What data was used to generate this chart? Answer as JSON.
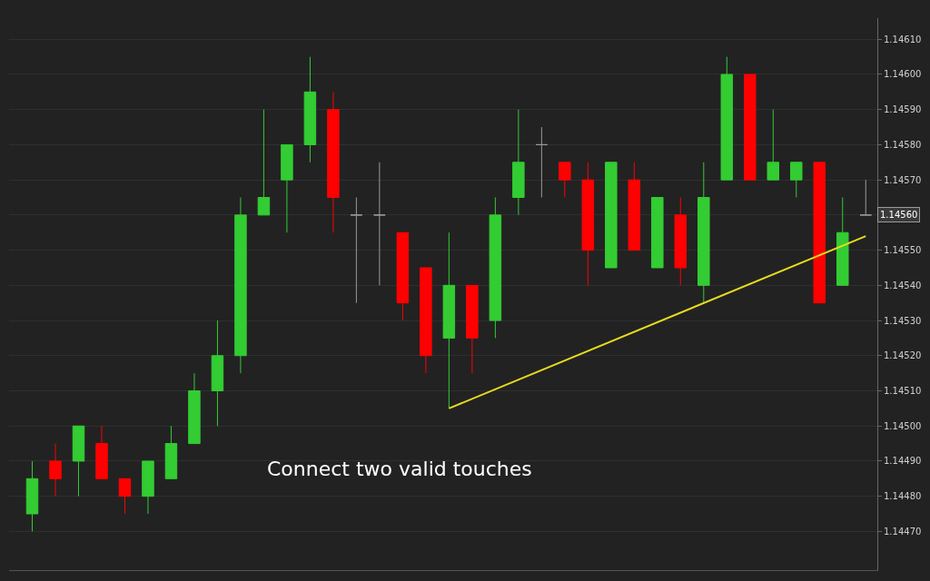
{
  "chart_data": {
    "type": "candlestick",
    "categories": [
      null,
      null,
      null,
      null,
      null,
      null,
      null,
      null,
      null,
      null,
      null,
      null,
      null,
      null,
      null,
      null,
      null,
      null,
      null,
      null,
      null,
      null,
      null,
      null,
      null,
      null,
      null,
      null,
      null,
      null,
      null,
      null,
      null,
      null,
      null,
      null,
      null
    ],
    "ohlc": [
      [
        1.14475,
        1.1449,
        1.1447,
        1.14485
      ],
      [
        1.1449,
        1.14495,
        1.1448,
        1.14485
      ],
      [
        1.1449,
        1.145,
        1.1448,
        1.145
      ],
      [
        1.14495,
        1.145,
        1.14485,
        1.14485
      ],
      [
        1.14485,
        1.14485,
        1.14475,
        1.1448
      ],
      [
        1.1448,
        1.1449,
        1.14475,
        1.1449
      ],
      [
        1.14485,
        1.145,
        1.14485,
        1.14495
      ],
      [
        1.14495,
        1.14515,
        1.14495,
        1.1451
      ],
      [
        1.1451,
        1.1453,
        1.145,
        1.1452
      ],
      [
        1.1452,
        1.14565,
        1.14515,
        1.1456
      ],
      [
        1.1456,
        1.1459,
        1.1456,
        1.14565
      ],
      [
        1.1457,
        1.1458,
        1.14555,
        1.1458
      ],
      [
        1.1458,
        1.14605,
        1.14575,
        1.14595
      ],
      [
        1.1459,
        1.14595,
        1.14555,
        1.14565
      ],
      [
        1.1456,
        1.14565,
        1.14535,
        1.1456
      ],
      [
        1.1456,
        1.14575,
        1.1454,
        1.1456
      ],
      [
        1.14555,
        1.14555,
        1.1453,
        1.14535
      ],
      [
        1.14545,
        1.14545,
        1.14515,
        1.1452
      ],
      [
        1.14525,
        1.14555,
        1.14505,
        1.1454
      ],
      [
        1.1454,
        1.1454,
        1.14515,
        1.14525
      ],
      [
        1.1453,
        1.14565,
        1.14525,
        1.1456
      ],
      [
        1.14565,
        1.1459,
        1.1456,
        1.14575
      ],
      [
        1.1458,
        1.14585,
        1.14565,
        1.1458
      ],
      [
        1.14575,
        1.14575,
        1.14565,
        1.1457
      ],
      [
        1.1457,
        1.14575,
        1.1454,
        1.1455
      ],
      [
        1.14545,
        1.14575,
        1.14545,
        1.14575
      ],
      [
        1.1457,
        1.14575,
        1.1455,
        1.1455
      ],
      [
        1.14545,
        1.14565,
        1.14545,
        1.14565
      ],
      [
        1.1456,
        1.14565,
        1.1454,
        1.14545
      ],
      [
        1.1454,
        1.14575,
        1.14535,
        1.14565
      ],
      [
        1.1457,
        1.14605,
        1.1457,
        1.146
      ],
      [
        1.146,
        1.146,
        1.1457,
        1.1457
      ],
      [
        1.1457,
        1.1459,
        1.1457,
        1.14575
      ],
      [
        1.1457,
        1.14575,
        1.14565,
        1.14575
      ],
      [
        1.14575,
        1.14575,
        1.14535,
        1.14535
      ],
      [
        1.1454,
        1.14565,
        1.1454,
        1.14555
      ],
      [
        1.1456,
        1.1457,
        1.1456,
        1.1456
      ]
    ],
    "colors": [
      "#33cc33",
      "#ff0000",
      "#33cc33",
      "#ff0000",
      "#ff0000",
      "#33cc33",
      "#33cc33",
      "#33cc33",
      "#33cc33",
      "#33cc33",
      "#33cc33",
      "#33cc33",
      "#33cc33",
      "#ff0000",
      "#9a9a9a",
      "#9a9a9a",
      "#ff0000",
      "#ff0000",
      "#33cc33",
      "#ff0000",
      "#33cc33",
      "#33cc33",
      "#9a9a9a",
      "#ff0000",
      "#ff0000",
      "#33cc33",
      "#ff0000",
      "#33cc33",
      "#ff0000",
      "#33cc33",
      "#33cc33",
      "#ff0000",
      "#33cc33",
      "#33cc33",
      "#ff0000",
      "#33cc33",
      "#9a9a9a"
    ],
    "series": [
      {
        "type": "line",
        "color": "#e8dc1c",
        "values": [
          null,
          null,
          null,
          null,
          null,
          null,
          null,
          null,
          null,
          null,
          null,
          null,
          null,
          null,
          null,
          null,
          null,
          null,
          1.14505,
          null,
          null,
          null,
          null,
          null,
          null,
          null,
          null,
          null,
          null,
          null,
          null,
          null,
          null,
          null,
          null,
          null,
          1.14554
        ]
      }
    ],
    "ylim": [
      1.14459,
      1.14616
    ],
    "yticks": [
      {
        "value": 1.1447,
        "label": "1.14470"
      },
      {
        "value": 1.1448,
        "label": "1.14480"
      },
      {
        "value": 1.1449,
        "label": "1.14490"
      },
      {
        "value": 1.145,
        "label": "1.14500"
      },
      {
        "value": 1.1451,
        "label": "1.14510"
      },
      {
        "value": 1.1452,
        "label": "1.14520"
      },
      {
        "value": 1.1453,
        "label": "1.14530"
      },
      {
        "value": 1.1454,
        "label": "1.14540"
      },
      {
        "value": 1.1455,
        "label": "1.14550"
      },
      {
        "value": 1.1456,
        "label": null
      },
      {
        "value": 1.1457,
        "label": "1.14570"
      },
      {
        "value": 1.1458,
        "label": "1.14580"
      },
      {
        "value": 1.1459,
        "label": "1.14590"
      },
      {
        "value": 1.146,
        "label": "1.14600"
      },
      {
        "value": 1.1461,
        "label": "1.14610"
      }
    ],
    "annotations": [
      "Connect two valid touches",
      "1.14560"
    ],
    "grid": "y",
    "tick_labels": "y"
  }
}
